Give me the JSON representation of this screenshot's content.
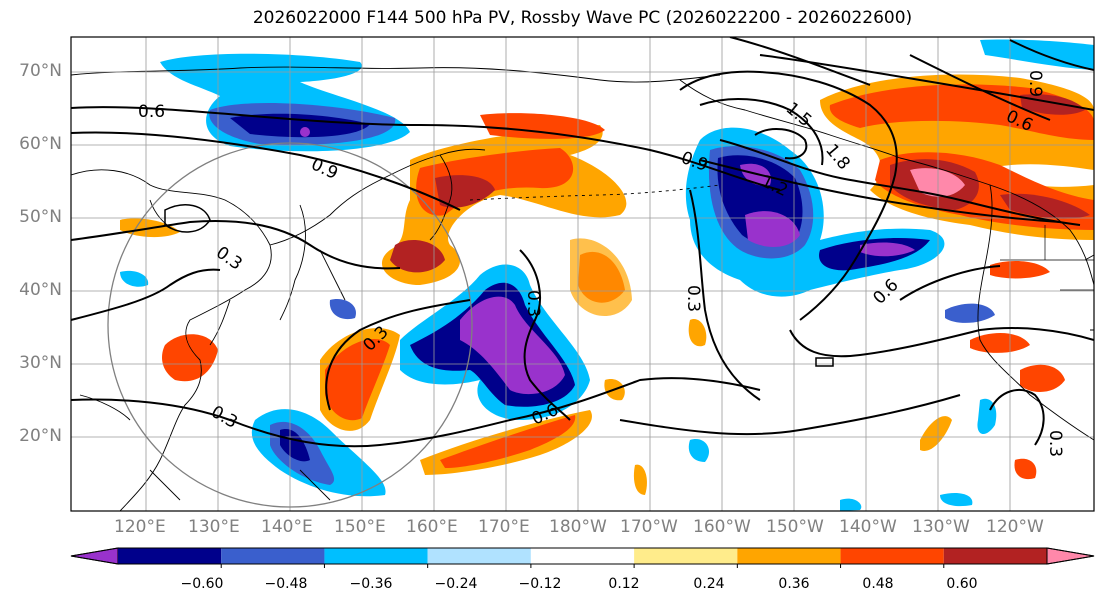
{
  "title": "2026022000 F144 500 hPa PV, Rossby Wave PC (2026022200 - 2026022600)",
  "lat_labels": [
    "70°N",
    "60°N",
    "50°N",
    "40°N",
    "30°N",
    "20°N"
  ],
  "lon_labels": [
    "120°E",
    "130°E",
    "140°E",
    "150°E",
    "160°E",
    "170°E",
    "180°W",
    "170°W",
    "160°W",
    "150°W",
    "140°W",
    "130°W",
    "120°W"
  ],
  "contour_labels": [
    "0.6",
    "0.9",
    "0.3",
    "0.3",
    "0.3",
    "0.3",
    "0.6",
    "0.6",
    "0.9",
    "1.2",
    "1.5",
    "1.8",
    "0.6",
    "0.9",
    "0.3",
    "0.3"
  ],
  "colorbar": {
    "colors": [
      "#9932CC",
      "#00008B",
      "#3A5FCD",
      "#00BFFF",
      "#B0E2FF",
      "#FFFFFF",
      "#FFEC8B",
      "#FFA500",
      "#FF4500",
      "#B22222",
      "#FF88AA"
    ],
    "tick_labels": [
      "−0.60",
      "−0.48",
      "−0.36",
      "−0.24",
      "−0.12",
      "0.12",
      "0.24",
      "0.36",
      "0.48",
      "0.60"
    ]
  }
}
